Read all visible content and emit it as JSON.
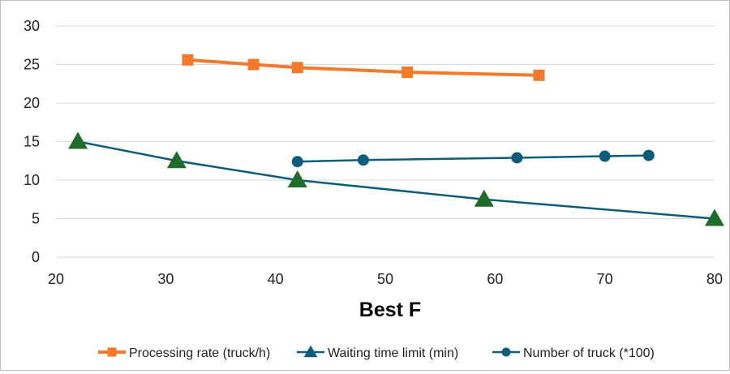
{
  "chart_data": {
    "type": "line",
    "title": "",
    "xlabel": "Best F",
    "ylabel": "",
    "xlim": [
      20,
      80
    ],
    "ylim": [
      0,
      30
    ],
    "xticks": [
      20,
      30,
      40,
      50,
      60,
      70,
      80
    ],
    "yticks": [
      0,
      5,
      10,
      15,
      20,
      25,
      30
    ],
    "grid": "horizontal",
    "legend_position": "bottom",
    "series": [
      {
        "name": "Processing rate (truck/h)",
        "color": "#f4792b",
        "marker": "square",
        "x": [
          32,
          38,
          42,
          52,
          64
        ],
        "y": [
          25.6,
          25.0,
          24.6,
          24.0,
          23.6
        ]
      },
      {
        "name": "Waiting time limit (min)",
        "color": "#0e5c7b",
        "marker_color": "#1e6b2a",
        "marker": "triangle",
        "x": [
          22,
          31,
          42,
          59,
          80
        ],
        "y": [
          15,
          12.5,
          10,
          7.5,
          5
        ]
      },
      {
        "name": "Number of truck (*100)",
        "color": "#0e5c7b",
        "marker": "circle",
        "x": [
          42,
          48,
          62,
          70,
          74
        ],
        "y": [
          12.4,
          12.6,
          12.9,
          13.1,
          13.2
        ]
      }
    ]
  }
}
